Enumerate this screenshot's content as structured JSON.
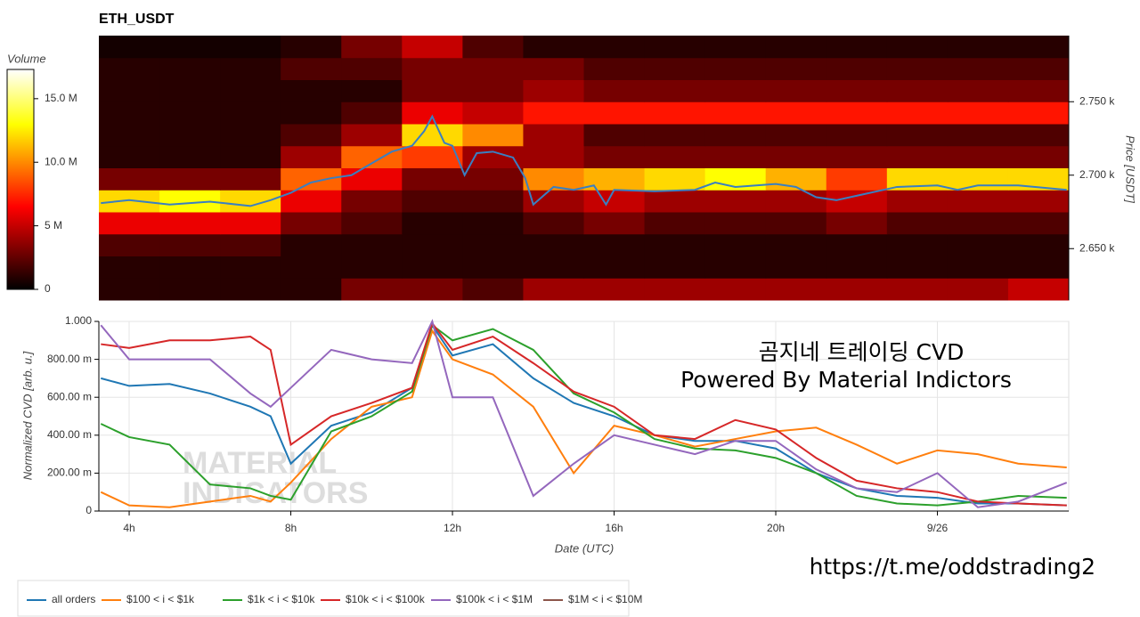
{
  "chart_data": [
    {
      "type": "heatmap",
      "title": "ETH_USDT",
      "colorbar_title": "Volume",
      "y_label": "Price [USDT]",
      "xlim": [
        3.25,
        27.25
      ],
      "ylim": [
        2615,
        2795
      ],
      "yticks": [
        {
          "value": 2650,
          "label": "2.650 k"
        },
        {
          "value": 2700,
          "label": "2.700 k"
        },
        {
          "value": 2750,
          "label": "2.750 k"
        }
      ],
      "clim": [
        0,
        17300000
      ],
      "cticks": [
        0,
        {
          "value": 5000000,
          "label": "5 M"
        },
        {
          "value": 10000000,
          "label": "10.0 M"
        },
        {
          "value": 15000000,
          "label": "15.0 M"
        }
      ],
      "colormap": "hot",
      "x_bins": [
        3.25,
        4.75,
        6.25,
        7.75,
        9.25,
        10.75,
        12.25,
        13.75,
        15.25,
        16.75,
        18.25,
        19.75,
        21.25,
        22.75,
        24.25,
        25.75,
        27.25
      ],
      "y_bins": [
        2615,
        2630,
        2645,
        2660,
        2675,
        2690,
        2705,
        2720,
        2735,
        2750,
        2765,
        2780,
        2795
      ],
      "z": [
        [
          1000000,
          1000000,
          1000000,
          1000000,
          3000000,
          3000000,
          2000000,
          4000000,
          4000000,
          4000000,
          4000000,
          4000000,
          4000000,
          4000000,
          4000000,
          5000000
        ],
        [
          1000000,
          1000000,
          1000000,
          1000000,
          1000000,
          1000000,
          1000000,
          1000000,
          1000000,
          1000000,
          1000000,
          1000000,
          1000000,
          1000000,
          1000000,
          1000000
        ],
        [
          2000000,
          2000000,
          2000000,
          1000000,
          1000000,
          1000000,
          1000000,
          1000000,
          1000000,
          1000000,
          1000000,
          1000000,
          1000000,
          1000000,
          1000000,
          1000000
        ],
        [
          6000000,
          6000000,
          6000000,
          3000000,
          2000000,
          1000000,
          1000000,
          2000000,
          3000000,
          2000000,
          2000000,
          2000000,
          3000000,
          2000000,
          2000000,
          2000000
        ],
        [
          12000000,
          13000000,
          12000000,
          6000000,
          3000000,
          2000000,
          2000000,
          4000000,
          5000000,
          4000000,
          4000000,
          4000000,
          5000000,
          4000000,
          4000000,
          4000000
        ],
        [
          3000000,
          3000000,
          3000000,
          9000000,
          6000000,
          3000000,
          3000000,
          10000000,
          11000000,
          12000000,
          13000000,
          11000000,
          8000000,
          12000000,
          12000000,
          12000000
        ],
        [
          1000000,
          1000000,
          1000000,
          4000000,
          9000000,
          8000000,
          4000000,
          4000000,
          3000000,
          3000000,
          3000000,
          3000000,
          3000000,
          3000000,
          3000000,
          3000000
        ],
        [
          1000000,
          1000000,
          1000000,
          2000000,
          4000000,
          12000000,
          10000000,
          4000000,
          2000000,
          2000000,
          2000000,
          2000000,
          2000000,
          2000000,
          2000000,
          2000000
        ],
        [
          1000000,
          1000000,
          1000000,
          1000000,
          2000000,
          6000000,
          5000000,
          7000000,
          7000000,
          7000000,
          7000000,
          7000000,
          7000000,
          7000000,
          7000000,
          7000000
        ],
        [
          1000000,
          1000000,
          1000000,
          1000000,
          1000000,
          3000000,
          3000000,
          4000000,
          3000000,
          3000000,
          3000000,
          3000000,
          3000000,
          3000000,
          3000000,
          3000000
        ],
        [
          1000000,
          1000000,
          1000000,
          2000000,
          2000000,
          3000000,
          3000000,
          3000000,
          2000000,
          2000000,
          2000000,
          2000000,
          2000000,
          2000000,
          2000000,
          2000000
        ],
        [
          500000,
          500000,
          500000,
          1000000,
          3000000,
          5000000,
          2000000,
          1000000,
          1000000,
          1000000,
          1000000,
          1000000,
          1000000,
          1000000,
          1000000,
          1000000
        ]
      ],
      "line_color": "#3a7fc1",
      "x": [
        3.3,
        4,
        5,
        6,
        7,
        7.5,
        8,
        8.5,
        9,
        9.5,
        10,
        10.5,
        11,
        11.3,
        11.5,
        11.8,
        12,
        12.3,
        12.6,
        13,
        13.5,
        13.8,
        14,
        14.5,
        15,
        15.5,
        15.8,
        16,
        17,
        18,
        18.5,
        19,
        20,
        20.5,
        21,
        21.5,
        22,
        23,
        24,
        24.5,
        25,
        26,
        27.2
      ],
      "values": [
        2681,
        2683,
        2680,
        2682,
        2679,
        2683,
        2688,
        2695,
        2698,
        2700,
        2708,
        2716,
        2720,
        2730,
        2740,
        2722,
        2720,
        2700,
        2715,
        2716,
        2712,
        2698,
        2680,
        2692,
        2690,
        2693,
        2680,
        2690,
        2689,
        2690,
        2695,
        2692,
        2694,
        2692,
        2685,
        2683,
        2686,
        2692,
        2693,
        2690,
        2693,
        2693,
        2690
      ]
    },
    {
      "type": "line",
      "x_label": "Date (UTC)",
      "y_label": "Normalized CVD [arb. u.]",
      "xlim": [
        3.25,
        27.25
      ],
      "ylim": [
        0,
        1
      ],
      "xticks": [
        {
          "value": 4,
          "label": "4h"
        },
        {
          "value": 8,
          "label": "8h"
        },
        {
          "value": 12,
          "label": "12h"
        },
        {
          "value": 16,
          "label": "16h"
        },
        {
          "value": 20,
          "label": "20h"
        },
        {
          "value": 24,
          "label": "9/26"
        }
      ],
      "yticks": [
        0,
        {
          "value": 0.2,
          "label": "200.00 m"
        },
        {
          "value": 0.4,
          "label": "400.00 m"
        },
        {
          "value": 0.6,
          "label": "600.00 m"
        },
        {
          "value": 0.8,
          "label": "800.00 m"
        },
        {
          "value": 1,
          "label": "1.000"
        }
      ],
      "grid": true,
      "annotations": [
        "곰지네 트레이딩 CVD",
        "Powered By Material Indictors"
      ],
      "watermark": [
        "MATERIAL",
        "INDICATORS"
      ],
      "caption": "https://t.me/oddstrading2",
      "legend": "bottom-left",
      "x": [
        3.3,
        4,
        5,
        6,
        7,
        7.5,
        8,
        9,
        10,
        11,
        11.5,
        12,
        13,
        14,
        15,
        16,
        17,
        18,
        19,
        20,
        21,
        22,
        23,
        24,
        25,
        26,
        27.2
      ],
      "series": [
        {
          "name": "all orders",
          "color": "#1f77b4",
          "values": [
            0.7,
            0.66,
            0.67,
            0.62,
            0.55,
            0.5,
            0.25,
            0.45,
            0.52,
            0.65,
            0.98,
            0.82,
            0.88,
            0.7,
            0.57,
            0.5,
            0.4,
            0.37,
            0.37,
            0.33,
            0.2,
            0.12,
            0.08,
            0.07,
            0.04,
            0.04,
            0.03
          ]
        },
        {
          "name": "$100 < i < $1k",
          "color": "#ff7f0e",
          "values": [
            0.1,
            0.03,
            0.02,
            0.05,
            0.08,
            0.05,
            0.15,
            0.38,
            0.55,
            0.6,
            0.95,
            0.8,
            0.72,
            0.55,
            0.2,
            0.45,
            0.4,
            0.34,
            0.38,
            0.42,
            0.44,
            0.35,
            0.25,
            0.32,
            0.3,
            0.25,
            0.23
          ]
        },
        {
          "name": "$1k < i < $10k",
          "color": "#2ca02c",
          "values": [
            0.46,
            0.39,
            0.35,
            0.14,
            0.12,
            0.08,
            0.06,
            0.42,
            0.5,
            0.63,
            0.98,
            0.9,
            0.96,
            0.85,
            0.62,
            0.52,
            0.38,
            0.33,
            0.32,
            0.28,
            0.2,
            0.08,
            0.04,
            0.03,
            0.05,
            0.08,
            0.07
          ]
        },
        {
          "name": "$10k < i < $100k",
          "color": "#d62728",
          "values": [
            0.88,
            0.86,
            0.9,
            0.9,
            0.92,
            0.85,
            0.35,
            0.5,
            0.57,
            0.65,
            0.99,
            0.85,
            0.92,
            0.78,
            0.63,
            0.55,
            0.4,
            0.38,
            0.48,
            0.43,
            0.28,
            0.16,
            0.12,
            0.1,
            0.05,
            0.04,
            0.03
          ]
        },
        {
          "name": "$100k < i < $1M",
          "color": "#9467bd",
          "values": [
            0.98,
            0.8,
            0.8,
            0.8,
            0.62,
            0.55,
            0.65,
            0.85,
            0.8,
            0.78,
            1.0,
            0.6,
            0.6,
            0.08,
            0.25,
            0.4,
            0.35,
            0.3,
            0.37,
            0.37,
            0.22,
            0.12,
            0.1,
            0.2,
            0.02,
            0.05,
            0.15
          ]
        },
        {
          "name": "$1M < i < $10M",
          "color": "#8c564b",
          "values": [
            null,
            null,
            null,
            null,
            null,
            null,
            null,
            null,
            null,
            null,
            null,
            null,
            null,
            null,
            null,
            null,
            null,
            null,
            null,
            null,
            null,
            null,
            null,
            null,
            null,
            null,
            null
          ]
        }
      ]
    }
  ]
}
